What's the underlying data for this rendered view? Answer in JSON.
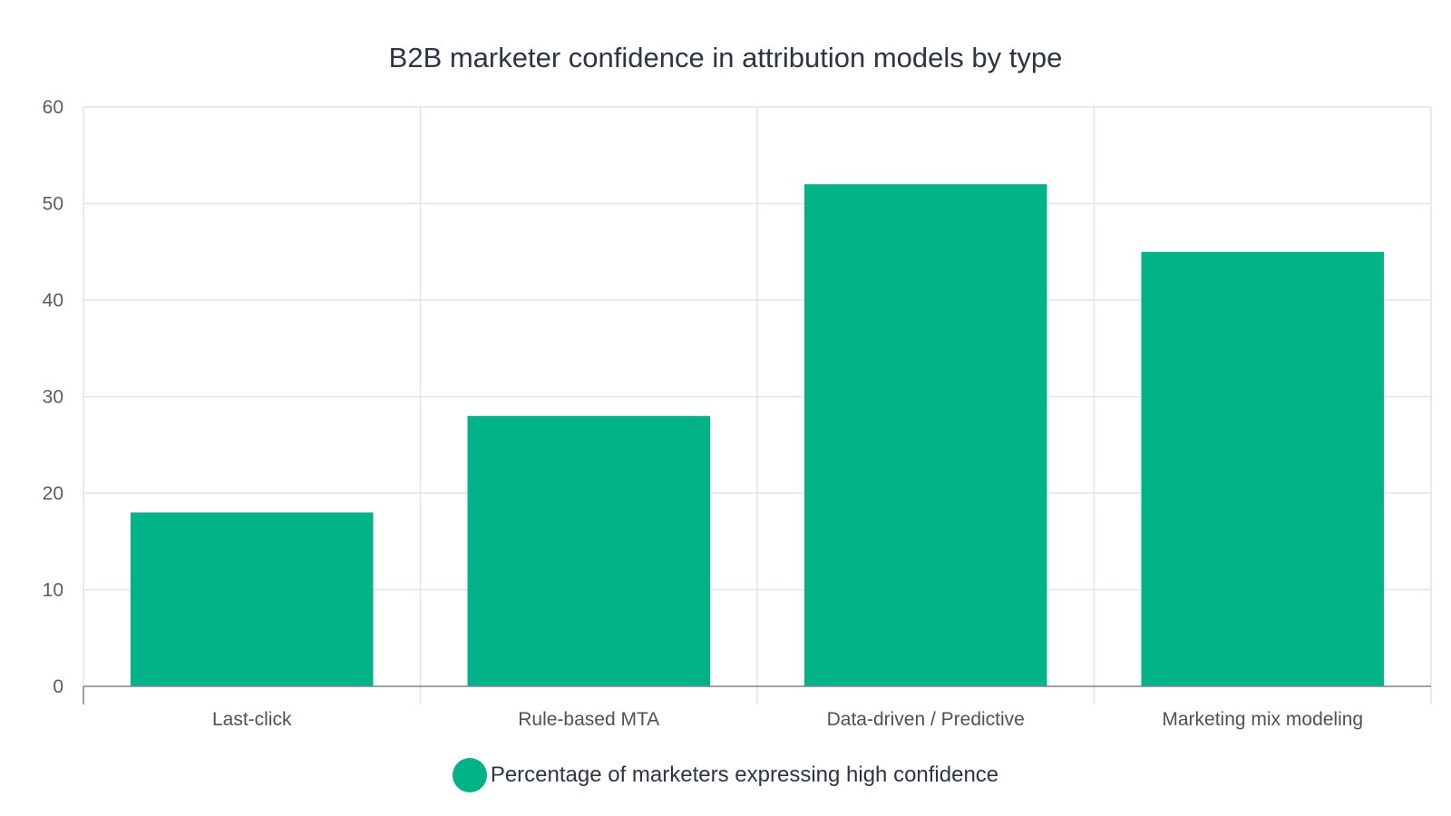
{
  "chart_data": {
    "type": "bar",
    "title": "B2B marketer confidence in attribution models by type",
    "xlabel": "",
    "ylabel": "",
    "categories": [
      "Last-click",
      "Rule-based MTA",
      "Data-driven / Predictive",
      "Marketing mix modeling"
    ],
    "series": [
      {
        "name": "Percentage of marketers expressing high confidence",
        "values": [
          18,
          28,
          52,
          45
        ],
        "color": "#03b388"
      }
    ],
    "ylim": [
      0,
      60
    ],
    "yticks": [
      0,
      10,
      20,
      30,
      40,
      50,
      60
    ],
    "grid": true,
    "legend_position": "bottom-center"
  }
}
